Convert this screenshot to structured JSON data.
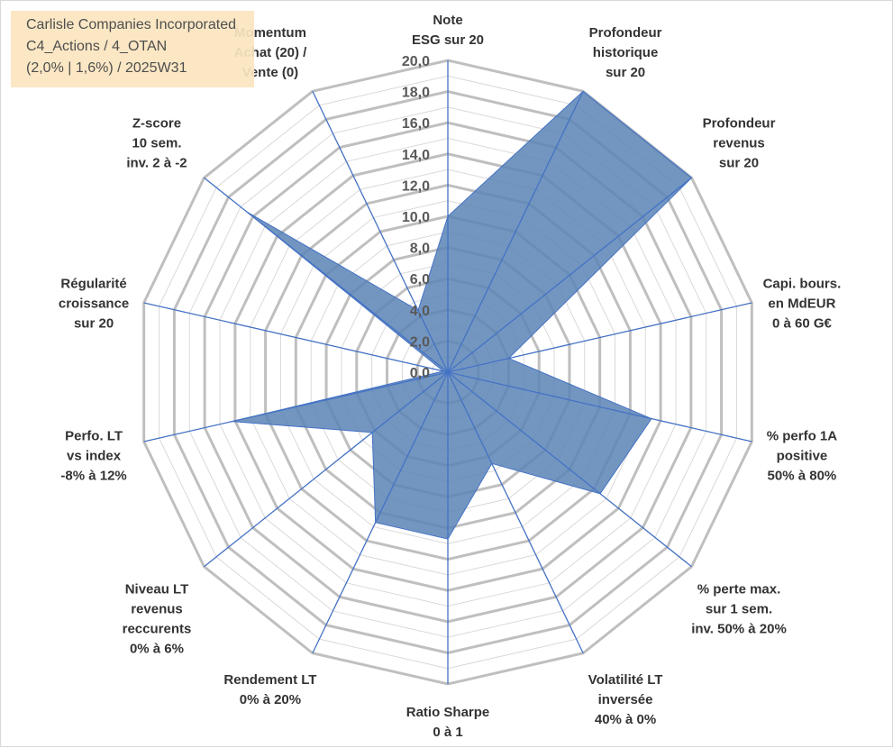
{
  "title": {
    "line1": "Carlisle Companies Incorporated",
    "line2": "C4_Actions / 4_OTAN",
    "line3": "(2,0% | 1,6%) / 2025W31"
  },
  "colors": {
    "fill": "#5b84b6",
    "axis": "#4472c4",
    "grid_major": "#bfbfbf",
    "grid_minor": "#d9d9d9"
  },
  "chart_data": {
    "type": "radar",
    "title": "",
    "range": [
      0,
      20
    ],
    "major_step": 2,
    "ticks": [
      "0,0",
      "2,0",
      "4,0",
      "6,0",
      "8,0",
      "10,0",
      "12,0",
      "14,0",
      "16,0",
      "18,0",
      "20,0"
    ],
    "grid": true,
    "axes": [
      {
        "label": [
          "Note",
          "ESG sur 20"
        ],
        "value": 10.0
      },
      {
        "label": [
          "Profondeur",
          "historique",
          "sur 20"
        ],
        "value": 20.0
      },
      {
        "label": [
          "Profondeur",
          "revenus",
          "sur 20"
        ],
        "value": 20.0
      },
      {
        "label": [
          "Capi. bours.",
          "en MdEUR",
          "0 à 60 G€"
        ],
        "value": 4.0
      },
      {
        "label": [
          "% perfo 1A",
          "positive",
          "50% à 80%"
        ],
        "value": 13.4
      },
      {
        "label": [
          "% perte max.",
          "sur 1 sem.",
          "inv. 50% à 20%"
        ],
        "value": 12.5
      },
      {
        "label": [
          "Volatilité LT",
          "inversée",
          "40% à 0%"
        ],
        "value": 6.5
      },
      {
        "label": [
          "Ratio Sharpe",
          "0 à 1"
        ],
        "value": 10.7
      },
      {
        "label": [
          "Rendement LT",
          "0% à 20%"
        ],
        "value": 10.7
      },
      {
        "label": [
          "Niveau LT",
          "revenus",
          "reccurents",
          "0% à 6%"
        ],
        "value": 6.2
      },
      {
        "label": [
          "Perfo. LT",
          "vs index",
          "-8% à 12%"
        ],
        "value": 14.2
      },
      {
        "label": [
          "Régularité",
          "croissance",
          "sur 20"
        ],
        "value": 0.3
      },
      {
        "label": [
          "Z-score",
          "10 sem.",
          "inv. 2 à -2"
        ],
        "value": 16.5
      },
      {
        "label": [
          "Momentum",
          "Achat (20) /",
          "Vente (0)"
        ],
        "value": 4.4
      }
    ]
  }
}
